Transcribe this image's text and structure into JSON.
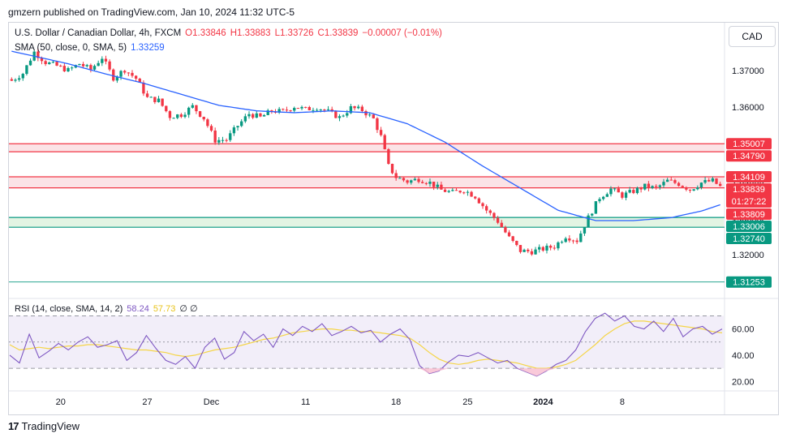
{
  "caption": "gmzern published on TradingView.com, Jan 10, 2024 11:32 UTC-5",
  "legend": {
    "symbol": "U.S. Dollar / Canadian Dollar, 4h, FXCM",
    "o": "O1.33846",
    "h": "H1.33883",
    "l": "L1.33726",
    "c": "C1.33839",
    "change": "−0.00007 (−0.01%)",
    "sma_label": "SMA (50, close, 0, SMA, 5)",
    "sma_value": "1.33259",
    "rsi_label": "RSI (14, close, SMA, 14, 2)",
    "rsi_value": "58.24",
    "rsi_sma_value": "57.73",
    "rsi_extra": "∅ ∅"
  },
  "currency_button": "CAD",
  "footer_brand": "TradingView",
  "colors": {
    "up": "#089981",
    "down": "#f23645",
    "sma": "#2962ff",
    "rsi": "#7e57c2",
    "rsi_sma": "#f5d547",
    "resistance_zone": "#fbe3e6",
    "support_zone": "#e3f4e3"
  },
  "chart_data": [
    {
      "type": "candlestick",
      "symbol": "USDCAD",
      "interval": "4h",
      "x_tick_labels": [
        "20",
        "27",
        "Dec",
        "11",
        "18",
        "25",
        "2024",
        "8"
      ],
      "y_tick_labels": [
        "1.37000",
        "1.36000",
        "1.35000",
        "1.34000",
        "1.33000",
        "1.32000"
      ],
      "ylim": [
        1.3085,
        1.3825
      ],
      "price_levels": [
        {
          "label": "1.35007",
          "value": 1.35007,
          "color": "#f23645"
        },
        {
          "label": "1.34790",
          "value": 1.3479,
          "color": "#f23645"
        },
        {
          "label": "1.34109",
          "value": 1.34109,
          "color": "#f23645"
        },
        {
          "label": "1.33839",
          "value": 1.33839,
          "color": "#f23645",
          "extra": "01:27:22"
        },
        {
          "label": "1.33809",
          "value": 1.33809,
          "color": "#f23645"
        },
        {
          "label": "1.33006",
          "value": 1.33006,
          "color": "#089981"
        },
        {
          "label": "1.32740",
          "value": 1.3274,
          "color": "#089981"
        },
        {
          "label": "1.31253",
          "value": 1.31253,
          "color": "#089981"
        }
      ],
      "zones": [
        {
          "kind": "resistance",
          "from": 1.3479,
          "to": 1.35007
        },
        {
          "kind": "resistance",
          "from": 1.33809,
          "to": 1.34109
        },
        {
          "kind": "support",
          "from": 1.3274,
          "to": 1.33006
        }
      ],
      "close_path": [
        [
          0,
          1.3672
        ],
        [
          3,
          1.3692
        ],
        [
          6,
          1.375
        ],
        [
          9,
          1.3722
        ],
        [
          12,
          1.3712
        ],
        [
          15,
          1.37
        ],
        [
          18,
          1.3718
        ],
        [
          21,
          1.3702
        ],
        [
          24,
          1.3735
        ],
        [
          27,
          1.368
        ],
        [
          30,
          1.3702
        ],
        [
          33,
          1.3678
        ],
        [
          36,
          1.3625
        ],
        [
          39,
          1.3618
        ],
        [
          42,
          1.3575
        ],
        [
          45,
          1.358
        ],
        [
          48,
          1.3602
        ],
        [
          51,
          1.357
        ],
        [
          54,
          1.351
        ],
        [
          57,
          1.3512
        ],
        [
          60,
          1.355
        ],
        [
          63,
          1.3582
        ],
        [
          66,
          1.3572
        ],
        [
          69,
          1.359
        ],
        [
          72,
          1.3588
        ],
        [
          75,
          1.3602
        ],
        [
          78,
          1.3594
        ],
        [
          81,
          1.36
        ],
        [
          84,
          1.3588
        ],
        [
          87,
          1.3572
        ],
        [
          90,
          1.3598
        ],
        [
          93,
          1.3592
        ],
        [
          96,
          1.3568
        ],
        [
          98,
          1.352
        ],
        [
          100,
          1.344
        ],
        [
          102,
          1.341
        ],
        [
          105,
          1.3398
        ],
        [
          108,
          1.3405
        ],
        [
          111,
          1.3395
        ],
        [
          114,
          1.3375
        ],
        [
          117,
          1.3368
        ],
        [
          120,
          1.3375
        ],
        [
          123,
          1.3358
        ],
        [
          126,
          1.332
        ],
        [
          129,
          1.329
        ],
        [
          132,
          1.3245
        ],
        [
          135,
          1.321
        ],
        [
          138,
          1.3208
        ],
        [
          141,
          1.3215
        ],
        [
          144,
          1.3222
        ],
        [
          147,
          1.325
        ],
        [
          150,
          1.3238
        ],
        [
          153,
          1.33
        ],
        [
          156,
          1.3355
        ],
        [
          159,
          1.3378
        ],
        [
          162,
          1.336
        ],
        [
          165,
          1.3372
        ],
        [
          168,
          1.3385
        ],
        [
          171,
          1.338
        ],
        [
          174,
          1.34
        ],
        [
          177,
          1.3392
        ],
        [
          180,
          1.3376
        ],
        [
          183,
          1.3395
        ],
        [
          186,
          1.34
        ],
        [
          188,
          1.3384
        ]
      ],
      "sma_path": [
        [
          0,
          1.3752
        ],
        [
          15,
          1.3718
        ],
        [
          25,
          1.369
        ],
        [
          35,
          1.3665
        ],
        [
          45,
          1.3635
        ],
        [
          55,
          1.3605
        ],
        [
          65,
          1.359
        ],
        [
          75,
          1.3585
        ],
        [
          85,
          1.359
        ],
        [
          95,
          1.3585
        ],
        [
          105,
          1.3555
        ],
        [
          115,
          1.3505
        ],
        [
          125,
          1.344
        ],
        [
          135,
          1.338
        ],
        [
          145,
          1.332
        ],
        [
          155,
          1.3292
        ],
        [
          165,
          1.3292
        ],
        [
          175,
          1.33
        ],
        [
          183,
          1.3318
        ],
        [
          188,
          1.3335
        ]
      ]
    },
    {
      "type": "line",
      "name": "RSI (14, close, SMA, 14, 2)",
      "y_tick_labels": [
        "60.00",
        "40.00",
        "20.00"
      ],
      "ylim": [
        14,
        82
      ],
      "bands": [
        70,
        50,
        30
      ],
      "series": [
        {
          "name": "RSI",
          "values": [
            40,
            34,
            56,
            38,
            43,
            49,
            44,
            50,
            54,
            46,
            48,
            51,
            36,
            42,
            55,
            45,
            36,
            33,
            39,
            30,
            46,
            53,
            37,
            42,
            58,
            51,
            56,
            46,
            60,
            55,
            62,
            58,
            64,
            55,
            58,
            62,
            57,
            59,
            50,
            56,
            60,
            52,
            32,
            26,
            28,
            35,
            40,
            39,
            42,
            38,
            34,
            36,
            30,
            27,
            24,
            28,
            33,
            36,
            44,
            58,
            68,
            72,
            66,
            70,
            62,
            60,
            66,
            58,
            68,
            54,
            60,
            62,
            56,
            60
          ]
        },
        {
          "name": "RSI-based MA",
          "values": [
            48,
            44,
            45,
            46,
            45,
            46,
            47,
            47,
            48,
            48,
            47,
            46,
            45,
            44,
            44,
            43,
            42,
            40,
            39,
            40,
            42,
            44,
            45,
            46,
            48,
            50,
            52,
            53,
            55,
            57,
            58,
            59,
            60,
            60,
            59,
            59,
            58,
            58,
            57,
            56,
            55,
            53,
            48,
            42,
            37,
            34,
            33,
            34,
            36,
            37,
            36,
            35,
            34,
            32,
            30,
            30,
            31,
            33,
            36,
            42,
            48,
            55,
            60,
            64,
            66,
            66,
            65,
            64,
            63,
            62,
            61,
            60,
            58,
            57
          ]
        }
      ]
    }
  ]
}
